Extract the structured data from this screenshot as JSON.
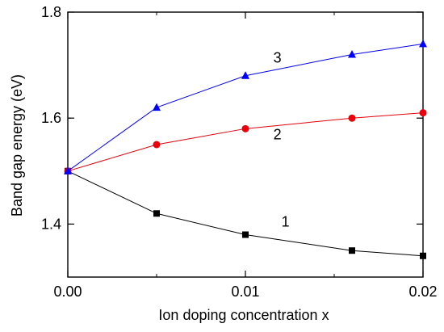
{
  "chart_data": {
    "type": "line",
    "title": "",
    "xlabel": "Ion doping concentration x",
    "ylabel": "Band gap energy (eV)",
    "xlim": [
      0,
      0.02
    ],
    "ylim": [
      1.3,
      1.8
    ],
    "x_ticks": [
      "0.00",
      "0.01",
      "0.02"
    ],
    "y_ticks": [
      "1.4",
      "1.6",
      "1.8"
    ],
    "grid": false,
    "legend": "none",
    "series": [
      {
        "name": "1",
        "color": "#000000",
        "marker": "square",
        "x": [
          0,
          0.005,
          0.01,
          0.016,
          0.02
        ],
        "y": [
          1.5,
          1.42,
          1.38,
          1.35,
          1.34
        ]
      },
      {
        "name": "2",
        "color": "#e8000b",
        "marker": "circle",
        "x": [
          0,
          0.005,
          0.01,
          0.016,
          0.02
        ],
        "y": [
          1.5,
          1.55,
          1.58,
          1.6,
          1.61
        ]
      },
      {
        "name": "3",
        "color": "#0000ff",
        "marker": "triangle",
        "x": [
          0,
          0.005,
          0.01,
          0.016,
          0.02
        ],
        "y": [
          1.5,
          1.62,
          1.68,
          1.72,
          1.74
        ]
      }
    ]
  }
}
